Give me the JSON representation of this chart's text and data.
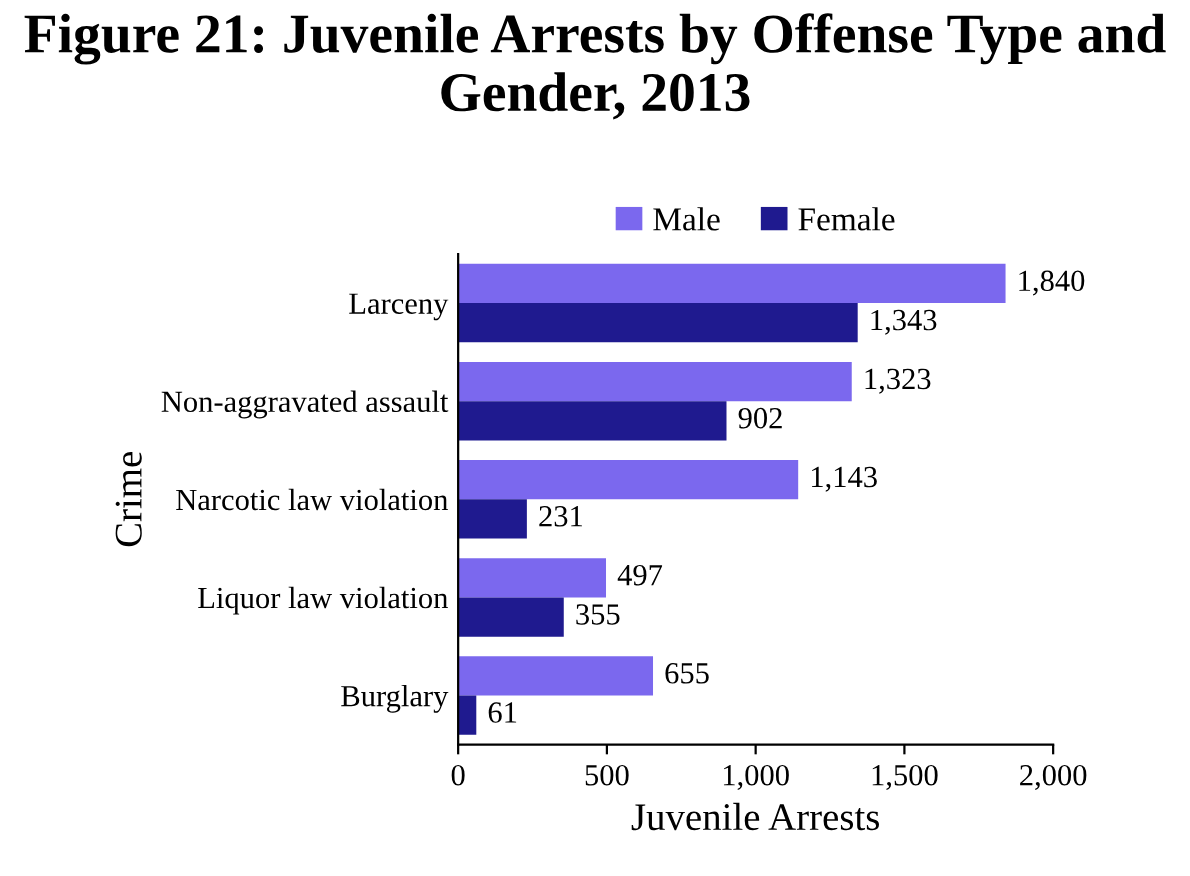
{
  "chart_data": {
    "type": "bar",
    "orientation": "horizontal",
    "title": "Figure 21: Juvenile Arrests by Offense Type and Gender, 2013",
    "xlabel": "Juvenile Arrests",
    "ylabel": "Crime",
    "categories": [
      "Larceny",
      "Non-aggravated assault",
      "Narcotic law violation",
      "Liquor law violation",
      "Burglary"
    ],
    "series": [
      {
        "name": "Male",
        "color": "#7b68ee",
        "values": [
          1840,
          1323,
          1143,
          497,
          655
        ],
        "value_labels": [
          "1,840",
          "1,323",
          "1,143",
          "497",
          "655"
        ]
      },
      {
        "name": "Female",
        "color": "#1f1a8f",
        "values": [
          1343,
          902,
          231,
          355,
          61
        ],
        "value_labels": [
          "1,343",
          "902",
          "231",
          "355",
          "61"
        ]
      }
    ],
    "xlim": [
      0,
      2000
    ],
    "xticks": [
      0,
      500,
      {
        "value": 1000,
        "label": "1,000"
      },
      {
        "value": 1500,
        "label": "1,500"
      },
      {
        "value": 2000,
        "label": "2,000"
      }
    ],
    "legend": "top",
    "grid": false
  }
}
